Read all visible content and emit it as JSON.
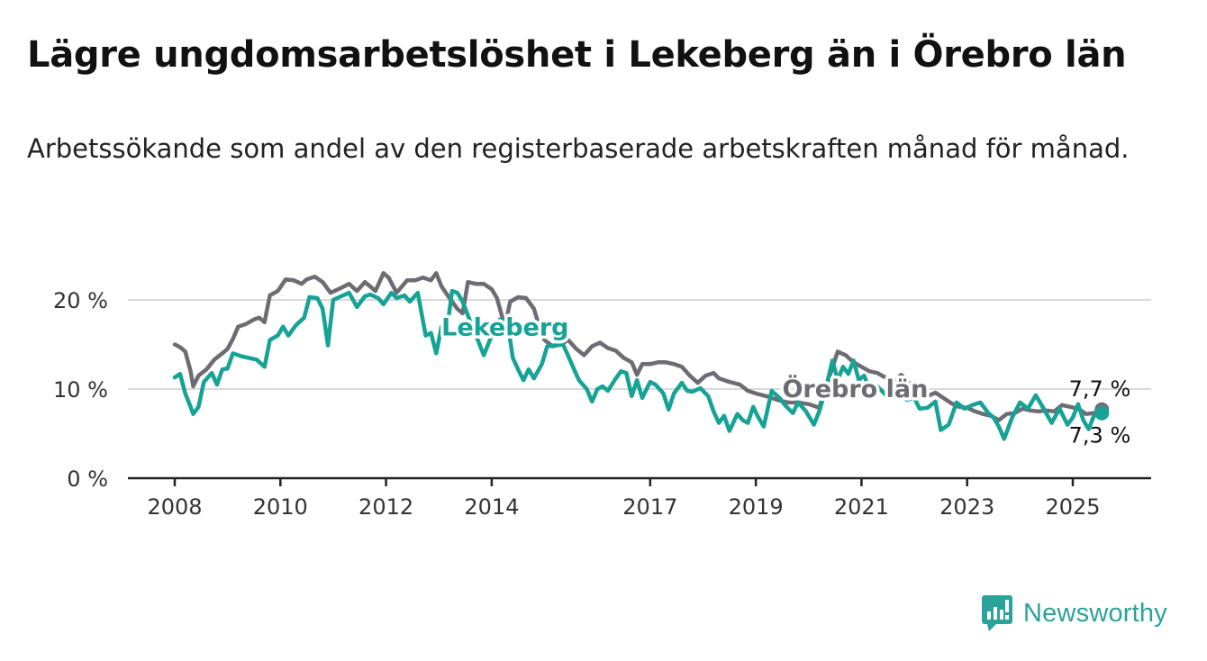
{
  "title": "Lägre ungdomsarbetslöshet i Lekeberg än i Örebro län",
  "subtitle": "Arbetssökande som andel av den registerbaserade arbetskraften månad för månad.",
  "brand": {
    "name": "Newsworthy",
    "icon": "bar-chart-exclamation-icon",
    "color": "#2aa39b"
  },
  "chart_data": {
    "type": "line",
    "ylim": [
      0,
      25
    ],
    "xlim": [
      2008,
      2026.5
    ],
    "y_ticks": [
      0,
      10,
      20
    ],
    "y_tick_labels": [
      "0 %",
      "10 %",
      "20 %"
    ],
    "x_ticks": [
      2008,
      2010,
      2012,
      2014,
      2017,
      2019,
      2021,
      2023,
      2025
    ],
    "x_tick_labels": [
      "2008",
      "2010",
      "2012",
      "2014",
      "2017",
      "2019",
      "2021",
      "2023",
      "2025"
    ],
    "grid": true,
    "series": [
      {
        "name": "Örebro län",
        "color": "#6e6c73",
        "end_label": "7,7 %",
        "points": [
          [
            2008.0,
            15.0
          ],
          [
            2008.1,
            14.7
          ],
          [
            2008.2,
            14.2
          ],
          [
            2008.3,
            12.0
          ],
          [
            2008.35,
            10.3
          ],
          [
            2008.45,
            11.5
          ],
          [
            2008.6,
            12.2
          ],
          [
            2008.75,
            13.3
          ],
          [
            2008.9,
            14.0
          ],
          [
            2009.0,
            14.5
          ],
          [
            2009.1,
            15.6
          ],
          [
            2009.2,
            17.0
          ],
          [
            2009.35,
            17.3
          ],
          [
            2009.5,
            17.8
          ],
          [
            2009.6,
            18.0
          ],
          [
            2009.7,
            17.5
          ],
          [
            2009.8,
            20.5
          ],
          [
            2009.95,
            21.0
          ],
          [
            2010.1,
            22.3
          ],
          [
            2010.25,
            22.2
          ],
          [
            2010.4,
            21.8
          ],
          [
            2010.5,
            22.3
          ],
          [
            2010.65,
            22.6
          ],
          [
            2010.8,
            22.0
          ],
          [
            2010.95,
            20.8
          ],
          [
            2011.1,
            21.2
          ],
          [
            2011.3,
            21.8
          ],
          [
            2011.45,
            21.0
          ],
          [
            2011.6,
            22.0
          ],
          [
            2011.7,
            21.5
          ],
          [
            2011.8,
            21.0
          ],
          [
            2011.95,
            23.0
          ],
          [
            2012.05,
            22.5
          ],
          [
            2012.2,
            20.8
          ],
          [
            2012.3,
            21.5
          ],
          [
            2012.4,
            22.2
          ],
          [
            2012.55,
            22.2
          ],
          [
            2012.7,
            22.5
          ],
          [
            2012.85,
            22.2
          ],
          [
            2012.95,
            23.0
          ],
          [
            2013.05,
            21.5
          ],
          [
            2013.2,
            20.2
          ],
          [
            2013.35,
            19.0
          ],
          [
            2013.45,
            18.5
          ],
          [
            2013.55,
            22.0
          ],
          [
            2013.7,
            21.8
          ],
          [
            2013.85,
            21.8
          ],
          [
            2014.0,
            21.2
          ],
          [
            2014.1,
            20.2
          ],
          [
            2014.25,
            17.0
          ],
          [
            2014.35,
            19.8
          ],
          [
            2014.5,
            20.3
          ],
          [
            2014.65,
            20.2
          ],
          [
            2014.8,
            19.0
          ],
          [
            2014.9,
            17.0
          ],
          [
            2015.0,
            15.5
          ],
          [
            2015.15,
            14.8
          ],
          [
            2015.3,
            15.0
          ],
          [
            2015.45,
            15.5
          ],
          [
            2015.6,
            14.5
          ],
          [
            2015.75,
            13.8
          ],
          [
            2015.9,
            14.8
          ],
          [
            2016.05,
            15.2
          ],
          [
            2016.2,
            14.6
          ],
          [
            2016.35,
            14.3
          ],
          [
            2016.5,
            13.5
          ],
          [
            2016.65,
            13.0
          ],
          [
            2016.75,
            11.6
          ],
          [
            2016.85,
            12.8
          ],
          [
            2017.0,
            12.8
          ],
          [
            2017.15,
            13.0
          ],
          [
            2017.3,
            13.0
          ],
          [
            2017.45,
            12.8
          ],
          [
            2017.6,
            12.5
          ],
          [
            2017.75,
            11.5
          ],
          [
            2017.9,
            10.7
          ],
          [
            2018.05,
            11.5
          ],
          [
            2018.2,
            11.8
          ],
          [
            2018.3,
            11.2
          ],
          [
            2018.5,
            10.8
          ],
          [
            2018.7,
            10.5
          ],
          [
            2018.85,
            9.8
          ],
          [
            2019.0,
            9.5
          ],
          [
            2019.2,
            9.2
          ],
          [
            2019.4,
            8.8
          ],
          [
            2019.6,
            8.5
          ],
          [
            2019.8,
            8.5
          ],
          [
            2020.0,
            8.3
          ],
          [
            2020.2,
            7.9
          ],
          [
            2020.4,
            11.5
          ],
          [
            2020.55,
            14.2
          ],
          [
            2020.7,
            13.8
          ],
          [
            2020.85,
            13.0
          ],
          [
            2021.0,
            12.5
          ],
          [
            2021.15,
            12.0
          ],
          [
            2021.3,
            11.8
          ],
          [
            2021.45,
            11.3
          ],
          [
            2021.6,
            10.6
          ],
          [
            2021.75,
            11.6
          ],
          [
            2021.85,
            11.0
          ],
          [
            2021.95,
            10.4
          ],
          [
            2022.1,
            10.0
          ],
          [
            2022.25,
            9.2
          ],
          [
            2022.4,
            9.6
          ],
          [
            2022.55,
            9.0
          ],
          [
            2022.7,
            8.4
          ],
          [
            2022.85,
            8.0
          ],
          [
            2023.0,
            7.9
          ],
          [
            2023.15,
            7.5
          ],
          [
            2023.3,
            7.2
          ],
          [
            2023.45,
            7.0
          ],
          [
            2023.6,
            6.5
          ],
          [
            2023.75,
            7.2
          ],
          [
            2023.9,
            7.3
          ],
          [
            2024.05,
            7.8
          ],
          [
            2024.2,
            7.6
          ],
          [
            2024.35,
            7.5
          ],
          [
            2024.5,
            7.6
          ],
          [
            2024.65,
            7.5
          ],
          [
            2024.8,
            8.2
          ],
          [
            2024.95,
            8.0
          ],
          [
            2025.1,
            7.8
          ],
          [
            2025.25,
            7.2
          ],
          [
            2025.4,
            7.3
          ],
          [
            2025.55,
            7.7
          ]
        ]
      },
      {
        "name": "Lekeberg",
        "color": "#16a396",
        "end_label": "7,3 %",
        "points": [
          [
            2008.0,
            11.3
          ],
          [
            2008.1,
            11.7
          ],
          [
            2008.2,
            9.5
          ],
          [
            2008.3,
            8.0
          ],
          [
            2008.35,
            7.2
          ],
          [
            2008.45,
            8.0
          ],
          [
            2008.55,
            10.8
          ],
          [
            2008.7,
            11.8
          ],
          [
            2008.8,
            10.5
          ],
          [
            2008.9,
            12.2
          ],
          [
            2009.0,
            12.3
          ],
          [
            2009.1,
            14.0
          ],
          [
            2009.25,
            13.7
          ],
          [
            2009.4,
            13.5
          ],
          [
            2009.55,
            13.3
          ],
          [
            2009.7,
            12.5
          ],
          [
            2009.8,
            15.5
          ],
          [
            2009.95,
            16.0
          ],
          [
            2010.05,
            17.0
          ],
          [
            2010.15,
            16.0
          ],
          [
            2010.3,
            17.2
          ],
          [
            2010.45,
            18.0
          ],
          [
            2010.55,
            20.3
          ],
          [
            2010.7,
            20.2
          ],
          [
            2010.8,
            19.0
          ],
          [
            2010.9,
            14.9
          ],
          [
            2011.0,
            20.0
          ],
          [
            2011.15,
            20.4
          ],
          [
            2011.3,
            20.8
          ],
          [
            2011.45,
            19.2
          ],
          [
            2011.6,
            20.4
          ],
          [
            2011.7,
            20.6
          ],
          [
            2011.85,
            20.2
          ],
          [
            2011.95,
            19.5
          ],
          [
            2012.1,
            20.8
          ],
          [
            2012.2,
            20.2
          ],
          [
            2012.35,
            20.5
          ],
          [
            2012.45,
            19.8
          ],
          [
            2012.6,
            20.8
          ],
          [
            2012.75,
            16.0
          ],
          [
            2012.85,
            16.3
          ],
          [
            2012.95,
            14.0
          ],
          [
            2013.05,
            17.0
          ],
          [
            2013.15,
            16.5
          ],
          [
            2013.25,
            21.0
          ],
          [
            2013.35,
            20.8
          ],
          [
            2013.45,
            19.8
          ],
          [
            2013.6,
            17.5
          ],
          [
            2013.75,
            15.3
          ],
          [
            2013.85,
            13.8
          ],
          [
            2014.0,
            16.0
          ],
          [
            2014.15,
            17.8
          ],
          [
            2014.3,
            17.5
          ],
          [
            2014.4,
            13.5
          ],
          [
            2014.5,
            12.2
          ],
          [
            2014.6,
            11.0
          ],
          [
            2014.7,
            12.2
          ],
          [
            2014.8,
            11.2
          ],
          [
            2014.95,
            12.8
          ],
          [
            2015.05,
            14.8
          ],
          [
            2015.2,
            14.9
          ],
          [
            2015.35,
            15.0
          ],
          [
            2015.5,
            13.0
          ],
          [
            2015.65,
            11.0
          ],
          [
            2015.8,
            10.0
          ],
          [
            2015.9,
            8.6
          ],
          [
            2016.0,
            10.0
          ],
          [
            2016.1,
            10.3
          ],
          [
            2016.2,
            9.8
          ],
          [
            2016.35,
            11.2
          ],
          [
            2016.45,
            12.0
          ],
          [
            2016.55,
            11.8
          ],
          [
            2016.65,
            9.2
          ],
          [
            2016.75,
            11.0
          ],
          [
            2016.85,
            9.0
          ],
          [
            2017.0,
            10.8
          ],
          [
            2017.1,
            10.5
          ],
          [
            2017.25,
            9.5
          ],
          [
            2017.35,
            7.7
          ],
          [
            2017.45,
            9.5
          ],
          [
            2017.6,
            10.7
          ],
          [
            2017.7,
            9.8
          ],
          [
            2017.8,
            9.7
          ],
          [
            2017.95,
            10.1
          ],
          [
            2018.1,
            9.2
          ],
          [
            2018.2,
            7.5
          ],
          [
            2018.3,
            6.2
          ],
          [
            2018.4,
            7.0
          ],
          [
            2018.5,
            5.3
          ],
          [
            2018.65,
            7.2
          ],
          [
            2018.75,
            6.5
          ],
          [
            2018.85,
            6.2
          ],
          [
            2018.95,
            8.0
          ],
          [
            2019.05,
            6.8
          ],
          [
            2019.15,
            5.8
          ],
          [
            2019.3,
            9.8
          ],
          [
            2019.45,
            9.0
          ],
          [
            2019.55,
            8.2
          ],
          [
            2019.7,
            7.3
          ],
          [
            2019.8,
            8.5
          ],
          [
            2019.95,
            7.5
          ],
          [
            2020.1,
            6.0
          ],
          [
            2020.2,
            7.5
          ],
          [
            2020.3,
            9.5
          ],
          [
            2020.45,
            13.2
          ],
          [
            2020.55,
            11.0
          ],
          [
            2020.65,
            12.5
          ],
          [
            2020.75,
            11.7
          ],
          [
            2020.85,
            13.2
          ],
          [
            2020.95,
            11.0
          ],
          [
            2021.05,
            11.5
          ],
          [
            2021.15,
            10.0
          ],
          [
            2021.3,
            10.3
          ],
          [
            2021.45,
            9.4
          ],
          [
            2021.6,
            9.2
          ],
          [
            2021.7,
            10.0
          ],
          [
            2021.85,
            8.8
          ],
          [
            2022.0,
            9.0
          ],
          [
            2022.1,
            7.8
          ],
          [
            2022.25,
            7.9
          ],
          [
            2022.4,
            8.6
          ],
          [
            2022.5,
            5.4
          ],
          [
            2022.65,
            6.0
          ],
          [
            2022.8,
            8.5
          ],
          [
            2022.95,
            7.8
          ],
          [
            2023.1,
            8.2
          ],
          [
            2023.25,
            8.5
          ],
          [
            2023.4,
            7.3
          ],
          [
            2023.5,
            6.8
          ],
          [
            2023.6,
            5.8
          ],
          [
            2023.7,
            4.4
          ],
          [
            2023.85,
            6.8
          ],
          [
            2024.0,
            8.5
          ],
          [
            2024.15,
            7.8
          ],
          [
            2024.3,
            9.3
          ],
          [
            2024.45,
            7.8
          ],
          [
            2024.6,
            6.2
          ],
          [
            2024.75,
            7.8
          ],
          [
            2024.9,
            6.0
          ],
          [
            2025.0,
            6.8
          ],
          [
            2025.1,
            8.3
          ],
          [
            2025.2,
            6.5
          ],
          [
            2025.3,
            5.5
          ],
          [
            2025.4,
            7.0
          ],
          [
            2025.55,
            7.3
          ]
        ]
      }
    ],
    "annotations": [
      {
        "text": "Lekeberg",
        "series": "Lekeberg",
        "x": 2013.05,
        "y": 17.0
      },
      {
        "text": "Örebro län",
        "series": "Örebro län",
        "x": 2019.5,
        "y": 10.1
      }
    ]
  }
}
